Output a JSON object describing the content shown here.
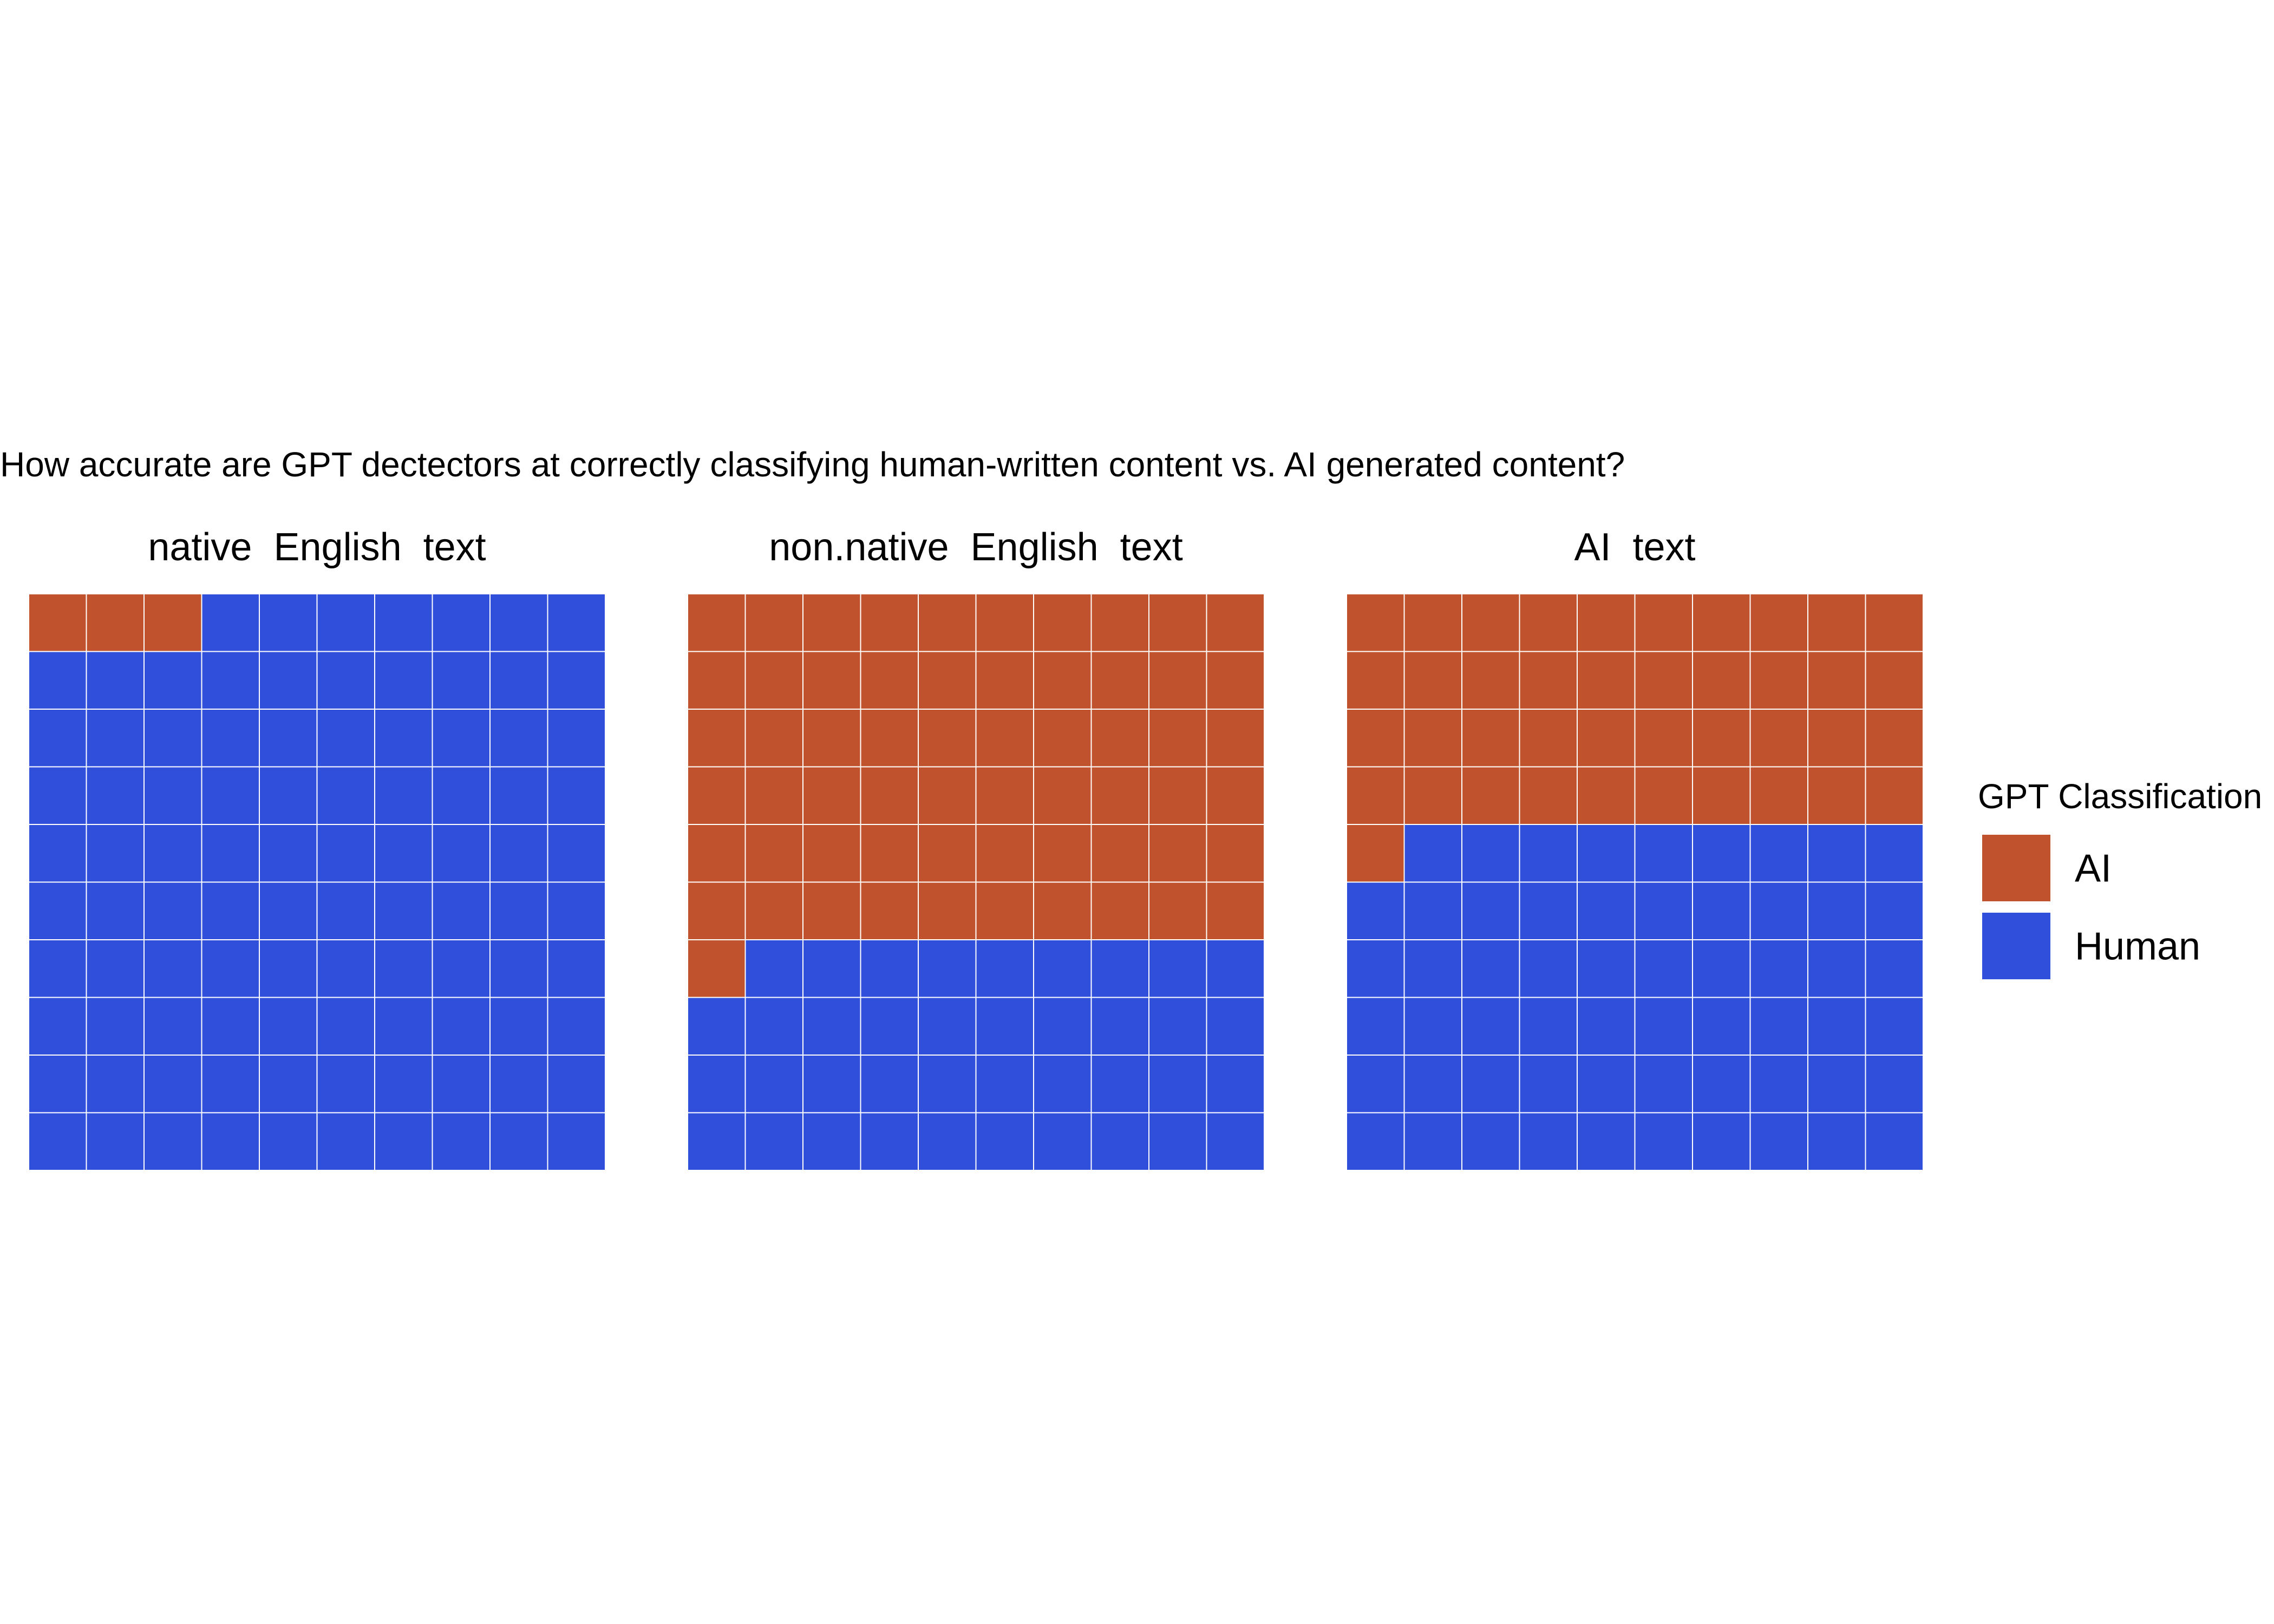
{
  "chart_data": {
    "type": "waffle",
    "title": "How accurate are GPT dectectors at correctly classifying human-written content vs. AI generated content?",
    "grid": {
      "rows": 10,
      "cols": 10
    },
    "fill_order": "row-wise from top-left; AI squares first, then Human",
    "legend": {
      "title": "GPT Classification",
      "position": "right",
      "entries": [
        {
          "label": "AI",
          "color": "#C0532D"
        },
        {
          "label": "Human",
          "color": "#3050DC"
        }
      ]
    },
    "facets": [
      {
        "title": "native  English  text",
        "AI": 3,
        "Human": 97
      },
      {
        "title": "non.native  English  text",
        "AI": 61,
        "Human": 39
      },
      {
        "title": "AI  text",
        "AI": 41,
        "Human": 59
      }
    ],
    "tile_border_color": "#FFFFFF"
  }
}
